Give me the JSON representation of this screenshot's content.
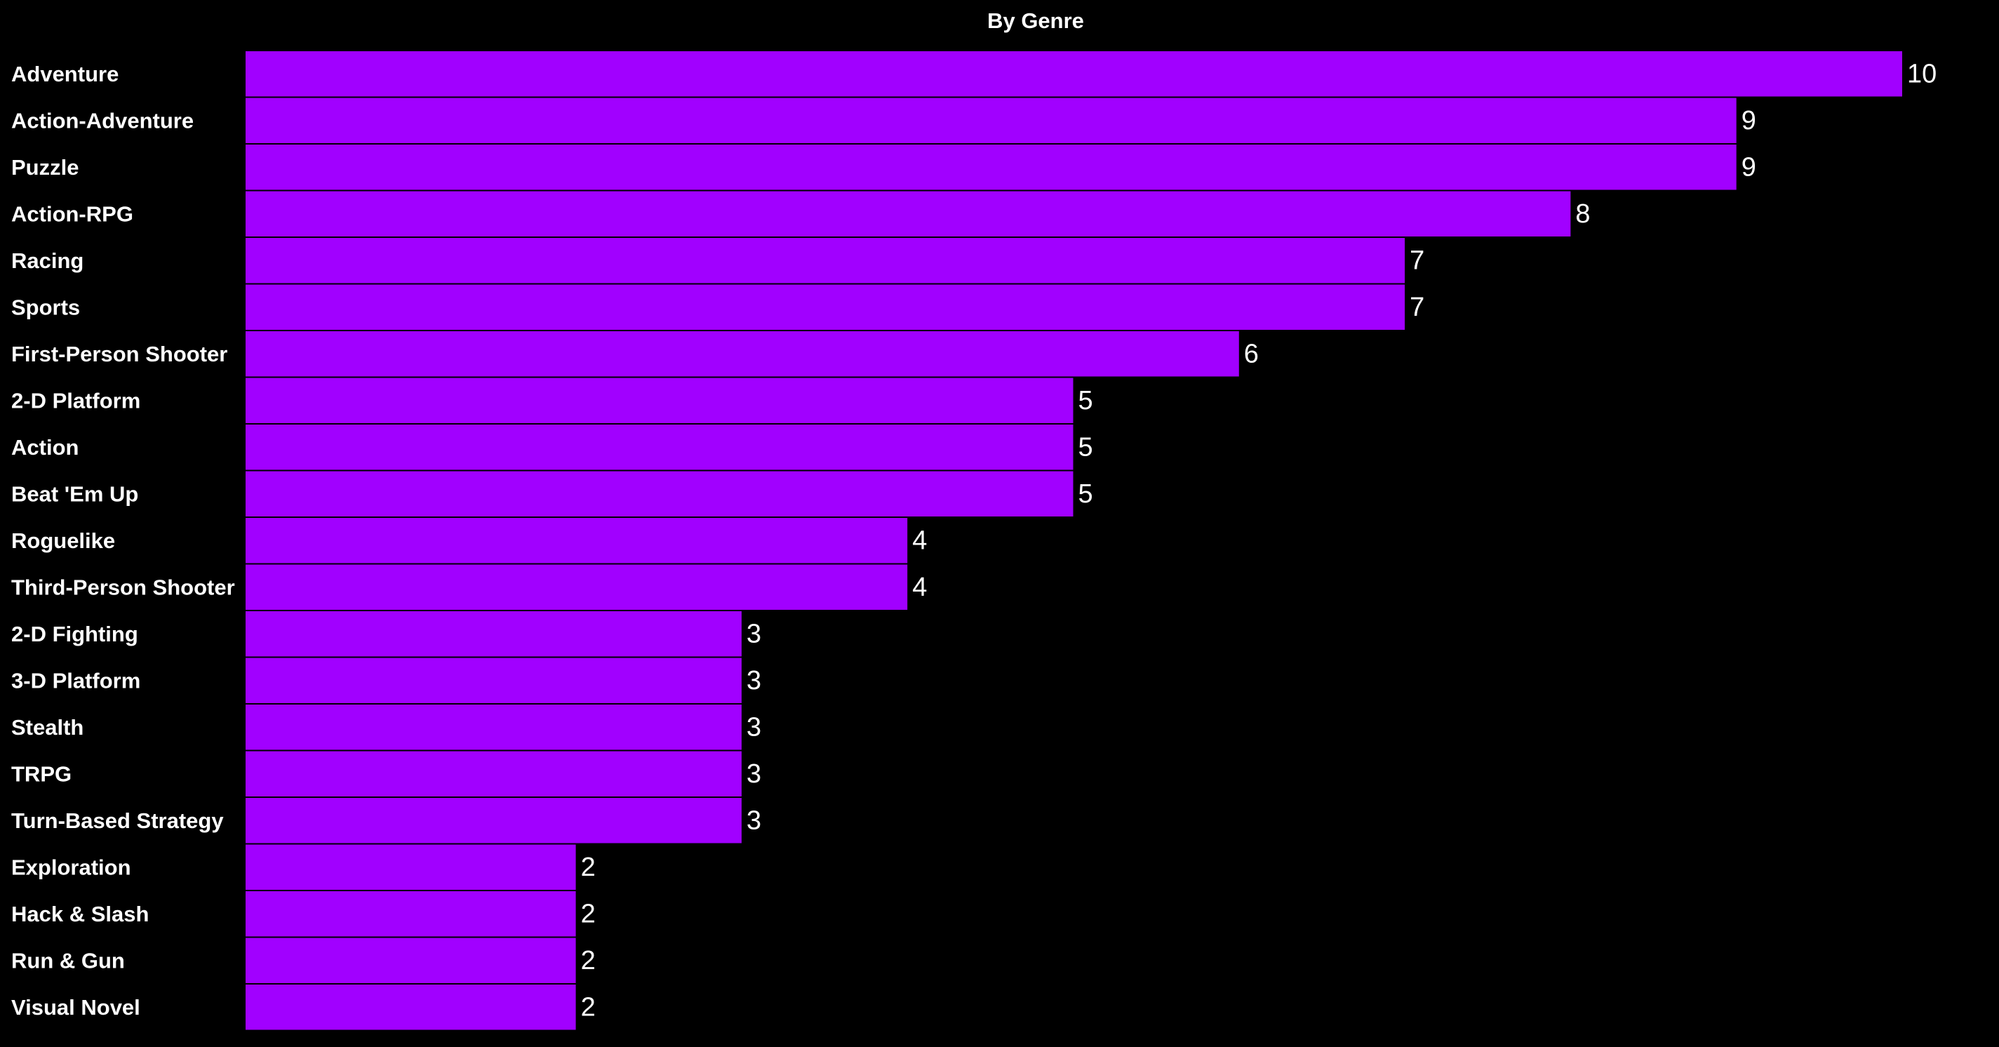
{
  "chart_data": {
    "type": "bar",
    "orientation": "horizontal",
    "title": "By Genre",
    "xlabel": "",
    "ylabel": "",
    "bar_color": "#a100ff",
    "background": "#000000",
    "text_color": "#ffffff",
    "grid": false,
    "data_labels": true,
    "xlim": [
      0,
      10
    ],
    "categories": [
      "Adventure",
      "Action-Adventure",
      "Puzzle",
      "Action-RPG",
      "Racing",
      "Sports",
      "First-Person Shooter",
      "2-D Platform",
      "Action",
      "Beat 'Em Up",
      "Roguelike",
      "Third-Person Shooter",
      "2-D Fighting",
      "3-D Platform",
      "Stealth",
      "TRPG",
      "Turn-Based Strategy",
      "Exploration",
      "Hack & Slash",
      "Run & Gun",
      "Visual Novel"
    ],
    "values": [
      10,
      9,
      9,
      8,
      7,
      7,
      6,
      5,
      5,
      5,
      4,
      4,
      3,
      3,
      3,
      3,
      3,
      2,
      2,
      2,
      2
    ]
  }
}
